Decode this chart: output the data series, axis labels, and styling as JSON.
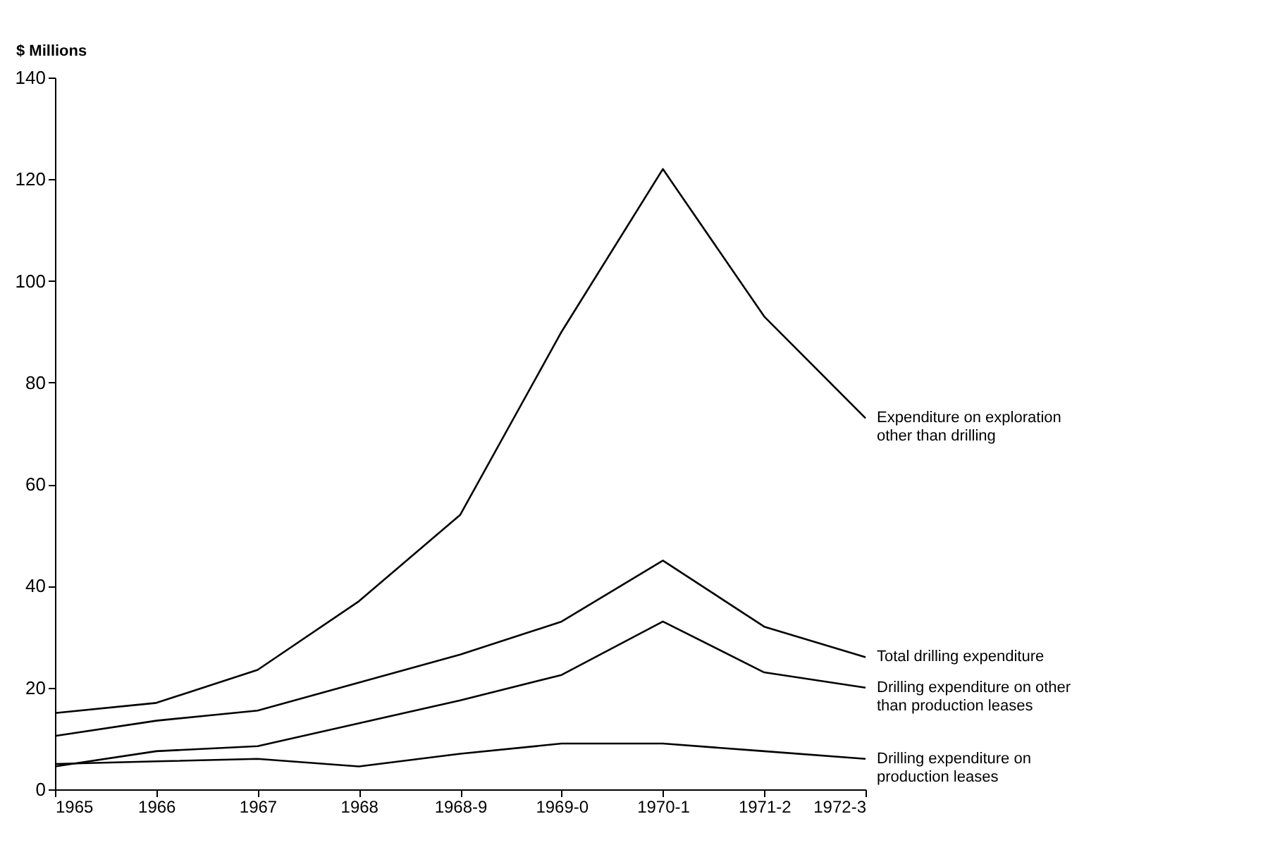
{
  "chart_data": {
    "type": "line",
    "ylabel": "$ Millions",
    "categories": [
      "1965",
      "1966",
      "1967",
      "1968",
      "1968-9",
      "1969-0",
      "1970-1",
      "1971-2",
      "1972-3"
    ],
    "ylim": [
      0,
      140
    ],
    "yticks": [
      0,
      20,
      40,
      60,
      80,
      100,
      120,
      140
    ],
    "grid": false,
    "legend": false,
    "marker": "none",
    "line_style": "solid",
    "series": [
      {
        "name": "Expenditure on exploration other than drilling",
        "color": "#000000",
        "values": [
          15,
          17,
          23.5,
          37,
          54,
          90,
          122,
          93,
          73
        ]
      },
      {
        "name": "Total drilling expenditure",
        "color": "#000000",
        "values": [
          10.5,
          13.5,
          15.5,
          21,
          26.5,
          33,
          45,
          32,
          26
        ]
      },
      {
        "name": "Drilling expenditure on other than production leases",
        "color": "#000000",
        "values": [
          4.5,
          7.5,
          8.5,
          13,
          17.5,
          22.5,
          33,
          23,
          20
        ]
      },
      {
        "name": "Drilling expenditure on production leases",
        "color": "#000000",
        "values": [
          5,
          5.5,
          6,
          4.5,
          7,
          9,
          9,
          7.5,
          6
        ]
      }
    ]
  }
}
